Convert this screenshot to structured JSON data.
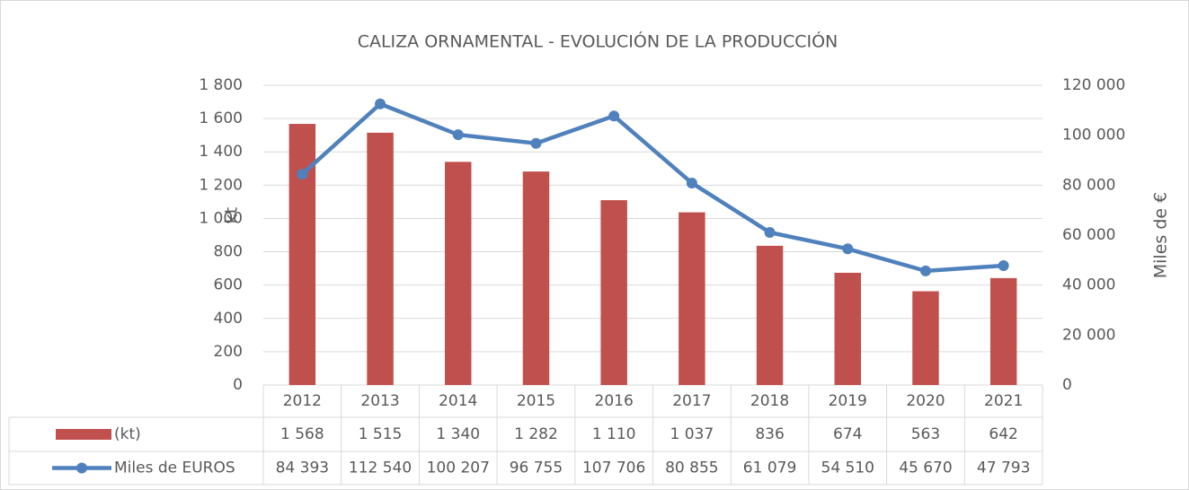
{
  "chart_data": {
    "type": "combo",
    "title": "CALIZA ORNAMENTAL - EVOLUCIÓN DE LA PRODUCCIÓN",
    "ylabel": "kt",
    "y2label": "Miles de €",
    "categories": [
      "2012",
      "2013",
      "2014",
      "2015",
      "2016",
      "2017",
      "2018",
      "2019",
      "2020",
      "2021"
    ],
    "series": [
      {
        "name": "(kt)",
        "type": "bar",
        "color": "#c0504d",
        "values": [
          1568,
          1515,
          1340,
          1282,
          1110,
          1037,
          836,
          674,
          563,
          642
        ],
        "value_labels": [
          "1 568",
          "1 515",
          "1 340",
          "1 282",
          "1 110",
          "1 037",
          "836",
          "674",
          "563",
          "642"
        ]
      },
      {
        "name": "Miles de EUROS",
        "type": "line",
        "axis": "y2",
        "color": "#4f81bd",
        "values": [
          84393,
          112540,
          100207,
          96755,
          107706,
          80855,
          61079,
          54510,
          45670,
          47793
        ],
        "value_labels": [
          "84 393",
          "112 540",
          "100 207",
          "96 755",
          "107 706",
          "80 855",
          "61 079",
          "54 510",
          "45 670",
          "47 793"
        ]
      }
    ],
    "ylim": [
      0,
      1800
    ],
    "yticks": [
      0,
      200,
      400,
      600,
      800,
      {
        "value": 1000,
        "label": "1 000"
      },
      {
        "value": 1200,
        "label": "1 200"
      },
      {
        "value": 1400,
        "label": "1 400"
      },
      {
        "value": 1600,
        "label": "1 600"
      },
      {
        "value": 1800,
        "label": "1 800"
      }
    ],
    "y2lim": [
      0,
      120000
    ],
    "y2ticks": [
      0,
      {
        "value": 20000,
        "label": "20 000"
      },
      {
        "value": 40000,
        "label": "40 000"
      },
      {
        "value": 60000,
        "label": "60 000"
      },
      {
        "value": 80000,
        "label": "80 000"
      },
      {
        "value": 100000,
        "label": "100 000"
      },
      {
        "value": 120000,
        "label": "120 000"
      }
    ],
    "grid": true
  }
}
